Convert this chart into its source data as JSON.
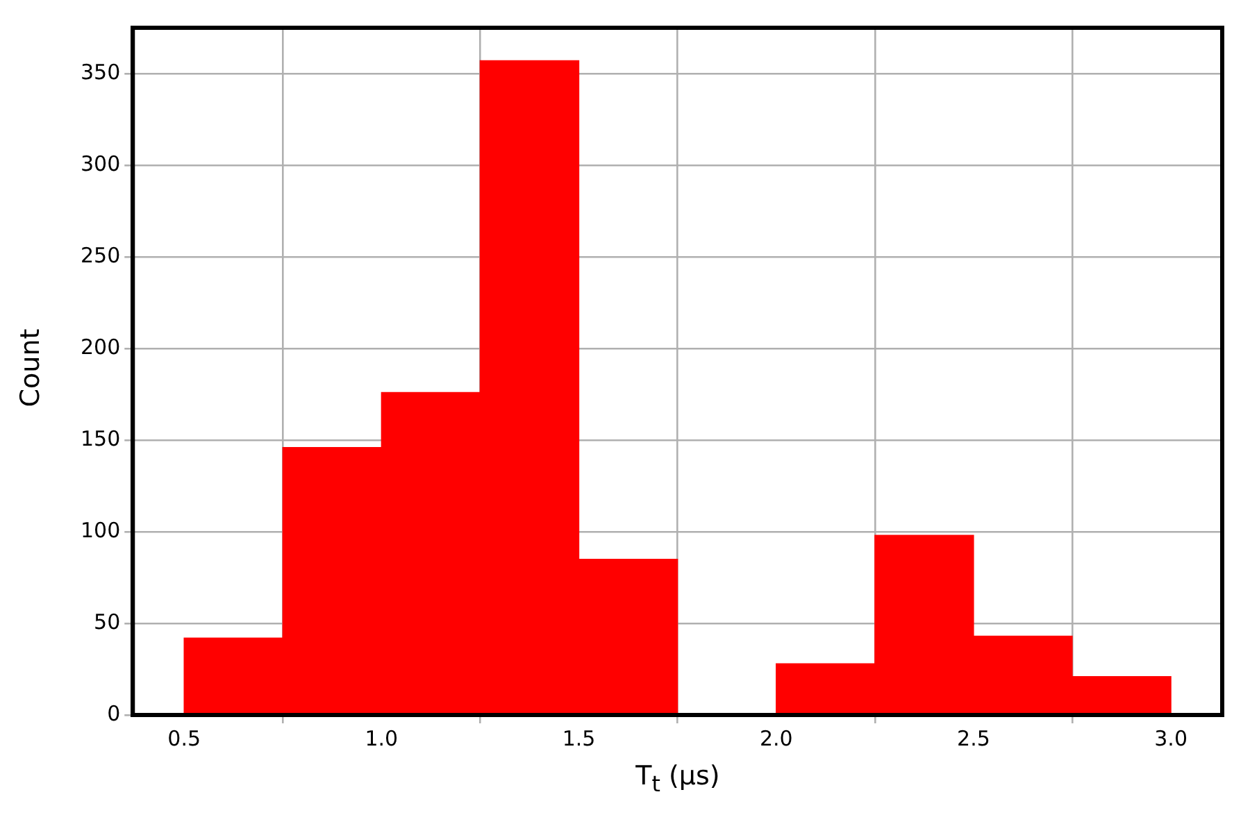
{
  "chart_data": {
    "type": "histogram",
    "xlabel": "T$_{t}$ (μs)",
    "ylabel": "Count",
    "color": "#ff0000",
    "bins": [
      0.5,
      0.75,
      1.0,
      1.25,
      1.5,
      1.75,
      2.0,
      2.25,
      2.5,
      2.75,
      3.0
    ],
    "values": [
      42,
      146,
      176,
      357,
      85,
      0,
      28,
      98,
      43,
      21
    ],
    "xlim": [
      0.37,
      3.13
    ],
    "xticks": [
      0.5,
      {
        "value": 1,
        "label": "1.0"
      },
      1.5,
      {
        "value": 2,
        "label": "2.0"
      },
      2.5,
      {
        "value": 3,
        "label": "3.0"
      }
    ],
    "ylim": [
      0,
      375
    ],
    "yticks": [
      0,
      50,
      100,
      150,
      200,
      250,
      300,
      350
    ],
    "grid": true,
    "legend": false
  }
}
